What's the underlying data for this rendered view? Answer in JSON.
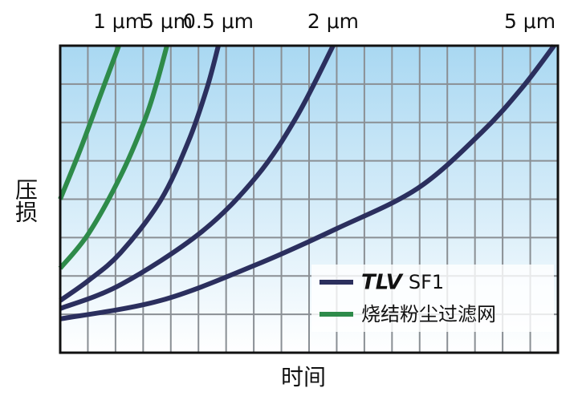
{
  "chart_data": {
    "type": "line",
    "xlabel": "时间",
    "ylabel": "压损",
    "xlim": [
      0,
      18
    ],
    "ylim": [
      0,
      8
    ],
    "xticks": [
      0,
      1,
      2,
      3,
      4,
      5,
      6,
      7,
      8,
      9,
      10,
      11,
      12,
      13,
      14,
      15,
      16,
      17,
      18
    ],
    "yticks": [
      0,
      1,
      2,
      3,
      4,
      5,
      6,
      7,
      8
    ],
    "grid": true,
    "series": [
      {
        "name": "1 μm",
        "color": "#2e8b4a",
        "x": [
          0,
          0.73,
          1.45,
          2.12
        ],
        "values": [
          4.0,
          5.3,
          6.7,
          8.0
        ]
      },
      {
        "name": "5 μm",
        "color": "#2e8b4a",
        "x": [
          0,
          1.02,
          2.18,
          3.05,
          3.48,
          3.86
        ],
        "values": [
          2.2,
          3.1,
          4.6,
          6.05,
          7.0,
          8.0
        ]
      },
      {
        "name": "0.5 μm",
        "color": "#2b2f5e",
        "x": [
          0,
          1.02,
          2.18,
          3.63,
          4.65,
          5.31,
          5.72
        ],
        "values": [
          1.36,
          1.88,
          2.6,
          3.97,
          5.53,
          6.9,
          8.0
        ]
      },
      {
        "name": "2 μm",
        "color": "#2b2f5e",
        "x": [
          0,
          2.18,
          5.08,
          7.11,
          8.56,
          9.87
        ],
        "values": [
          1.15,
          1.77,
          3.13,
          4.6,
          6.16,
          8.0
        ]
      },
      {
        "name": "5 μm",
        "color": "#2b2f5e",
        "x": [
          0,
          3.63,
          7.11,
          10.02,
          12.92,
          15.24,
          16.7,
          17.86
        ],
        "values": [
          0.88,
          1.36,
          2.3,
          3.24,
          4.28,
          5.74,
          6.9,
          8.0
        ]
      }
    ],
    "legend": [
      {
        "brand": "TLV",
        "label": "SF1",
        "color": "#2b2f5e"
      },
      {
        "label": "烧结粉尘过滤网",
        "color": "#2e8b4a"
      }
    ]
  }
}
